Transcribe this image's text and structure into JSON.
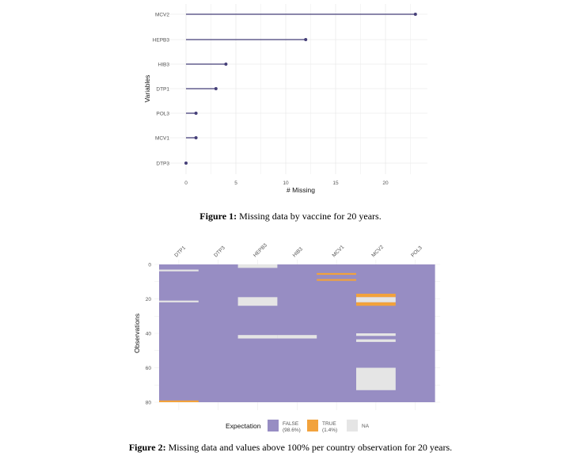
{
  "figure1": {
    "caption_label": "Figure 1:",
    "caption_text": " Missing data by vaccine for 20 years.",
    "chart_data": {
      "type": "lollipop",
      "categories": [
        "MCV2",
        "HEPB3",
        "HIB3",
        "DTP1",
        "POL3",
        "MCV1",
        "DTP3"
      ],
      "values": [
        23,
        12,
        4,
        3,
        1,
        1,
        0
      ],
      "xlabel": "# Missing",
      "ylabel": "Variables",
      "xticks": [
        "0",
        "5",
        "10",
        "15",
        "20"
      ],
      "xlim": [
        -1.2,
        24.2
      ],
      "grid": true,
      "color": "#453f78"
    }
  },
  "figure2": {
    "caption_label": "Figure 2:",
    "caption_text": " Missing data and values above 100% per country observation for 20 years.",
    "chart_data": {
      "type": "heatmap",
      "columns": [
        "DTP1",
        "DTP3",
        "HEPB3",
        "HIB3",
        "MCV1",
        "MCV2",
        "POL3"
      ],
      "ylabel": "Observations",
      "yticks": [
        "0",
        "20",
        "40",
        "60",
        "80"
      ],
      "ylim": [
        0,
        80
      ],
      "default": "FALSE",
      "cells": [
        {
          "col": 0,
          "from": 3,
          "to": 4,
          "value": "NA"
        },
        {
          "col": 0,
          "from": 21,
          "to": 22,
          "value": "NA"
        },
        {
          "col": 0,
          "from": 79,
          "to": 80,
          "value": "TRUE"
        },
        {
          "col": 2,
          "from": 0,
          "to": 2,
          "value": "NA"
        },
        {
          "col": 2,
          "from": 19,
          "to": 24,
          "value": "NA"
        },
        {
          "col": 2,
          "from": 41,
          "to": 43,
          "value": "NA"
        },
        {
          "col": 3,
          "from": 41,
          "to": 43,
          "value": "NA"
        },
        {
          "col": 4,
          "from": 5,
          "to": 6,
          "value": "TRUE"
        },
        {
          "col": 4,
          "from": 8.5,
          "to": 9.5,
          "value": "TRUE"
        },
        {
          "col": 5,
          "from": 17,
          "to": 19,
          "value": "TRUE"
        },
        {
          "col": 5,
          "from": 19,
          "to": 22,
          "value": "NA"
        },
        {
          "col": 5,
          "from": 22,
          "to": 24,
          "value": "TRUE"
        },
        {
          "col": 5,
          "from": 40,
          "to": 41.5,
          "value": "NA"
        },
        {
          "col": 5,
          "from": 43.5,
          "to": 45,
          "value": "NA"
        },
        {
          "col": 5,
          "from": 60,
          "to": 73,
          "value": "NA"
        }
      ],
      "legend": {
        "title": "Expectation",
        "items": [
          {
            "label": "FALSE",
            "pct": "(98.6%)",
            "color": "#978dc3"
          },
          {
            "label": "TRUE",
            "pct": "(1.4%)",
            "color": "#f2a23c"
          },
          {
            "label": "NA",
            "pct": "",
            "color": "#e5e5e5"
          }
        ]
      }
    }
  }
}
